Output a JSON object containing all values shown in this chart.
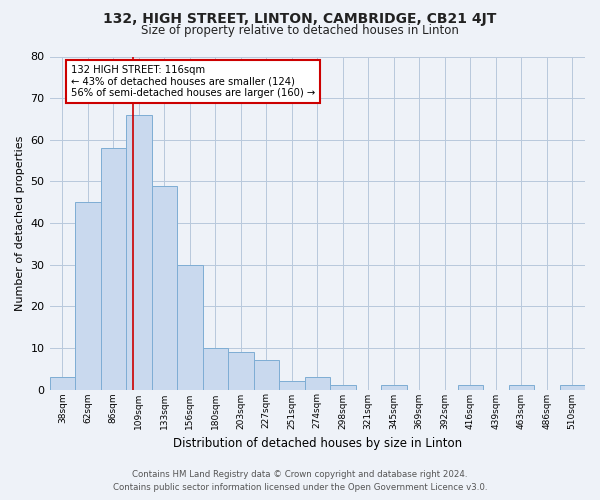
{
  "title": "132, HIGH STREET, LINTON, CAMBRIDGE, CB21 4JT",
  "subtitle": "Size of property relative to detached houses in Linton",
  "xlabel": "Distribution of detached houses by size in Linton",
  "ylabel": "Number of detached properties",
  "bin_labels": [
    "38sqm",
    "62sqm",
    "86sqm",
    "109sqm",
    "133sqm",
    "156sqm",
    "180sqm",
    "203sqm",
    "227sqm",
    "251sqm",
    "274sqm",
    "298sqm",
    "321sqm",
    "345sqm",
    "369sqm",
    "392sqm",
    "416sqm",
    "439sqm",
    "463sqm",
    "486sqm",
    "510sqm"
  ],
  "bar_values": [
    3,
    45,
    58,
    66,
    49,
    30,
    10,
    9,
    7,
    2,
    3,
    1,
    0,
    1,
    0,
    0,
    1,
    0,
    1,
    0,
    1
  ],
  "bar_color": "#c9d9ee",
  "bar_edge_color": "#7eadd4",
  "vline_x": 116,
  "bin_edges_values": [
    38,
    62,
    86,
    109,
    133,
    156,
    180,
    203,
    227,
    251,
    274,
    298,
    321,
    345,
    369,
    392,
    416,
    439,
    463,
    486,
    510
  ],
  "annotation_text": "132 HIGH STREET: 116sqm\n← 43% of detached houses are smaller (124)\n56% of semi-detached houses are larger (160) →",
  "annotation_box_color": "#ffffff",
  "annotation_box_edge_color": "#cc0000",
  "vline_color": "#cc0000",
  "ylim": [
    0,
    80
  ],
  "yticks": [
    0,
    10,
    20,
    30,
    40,
    50,
    60,
    70,
    80
  ],
  "footer_line1": "Contains HM Land Registry data © Crown copyright and database right 2024.",
  "footer_line2": "Contains public sector information licensed under the Open Government Licence v3.0.",
  "bg_color": "#eef2f8",
  "plot_bg_color": "#eef2f8"
}
